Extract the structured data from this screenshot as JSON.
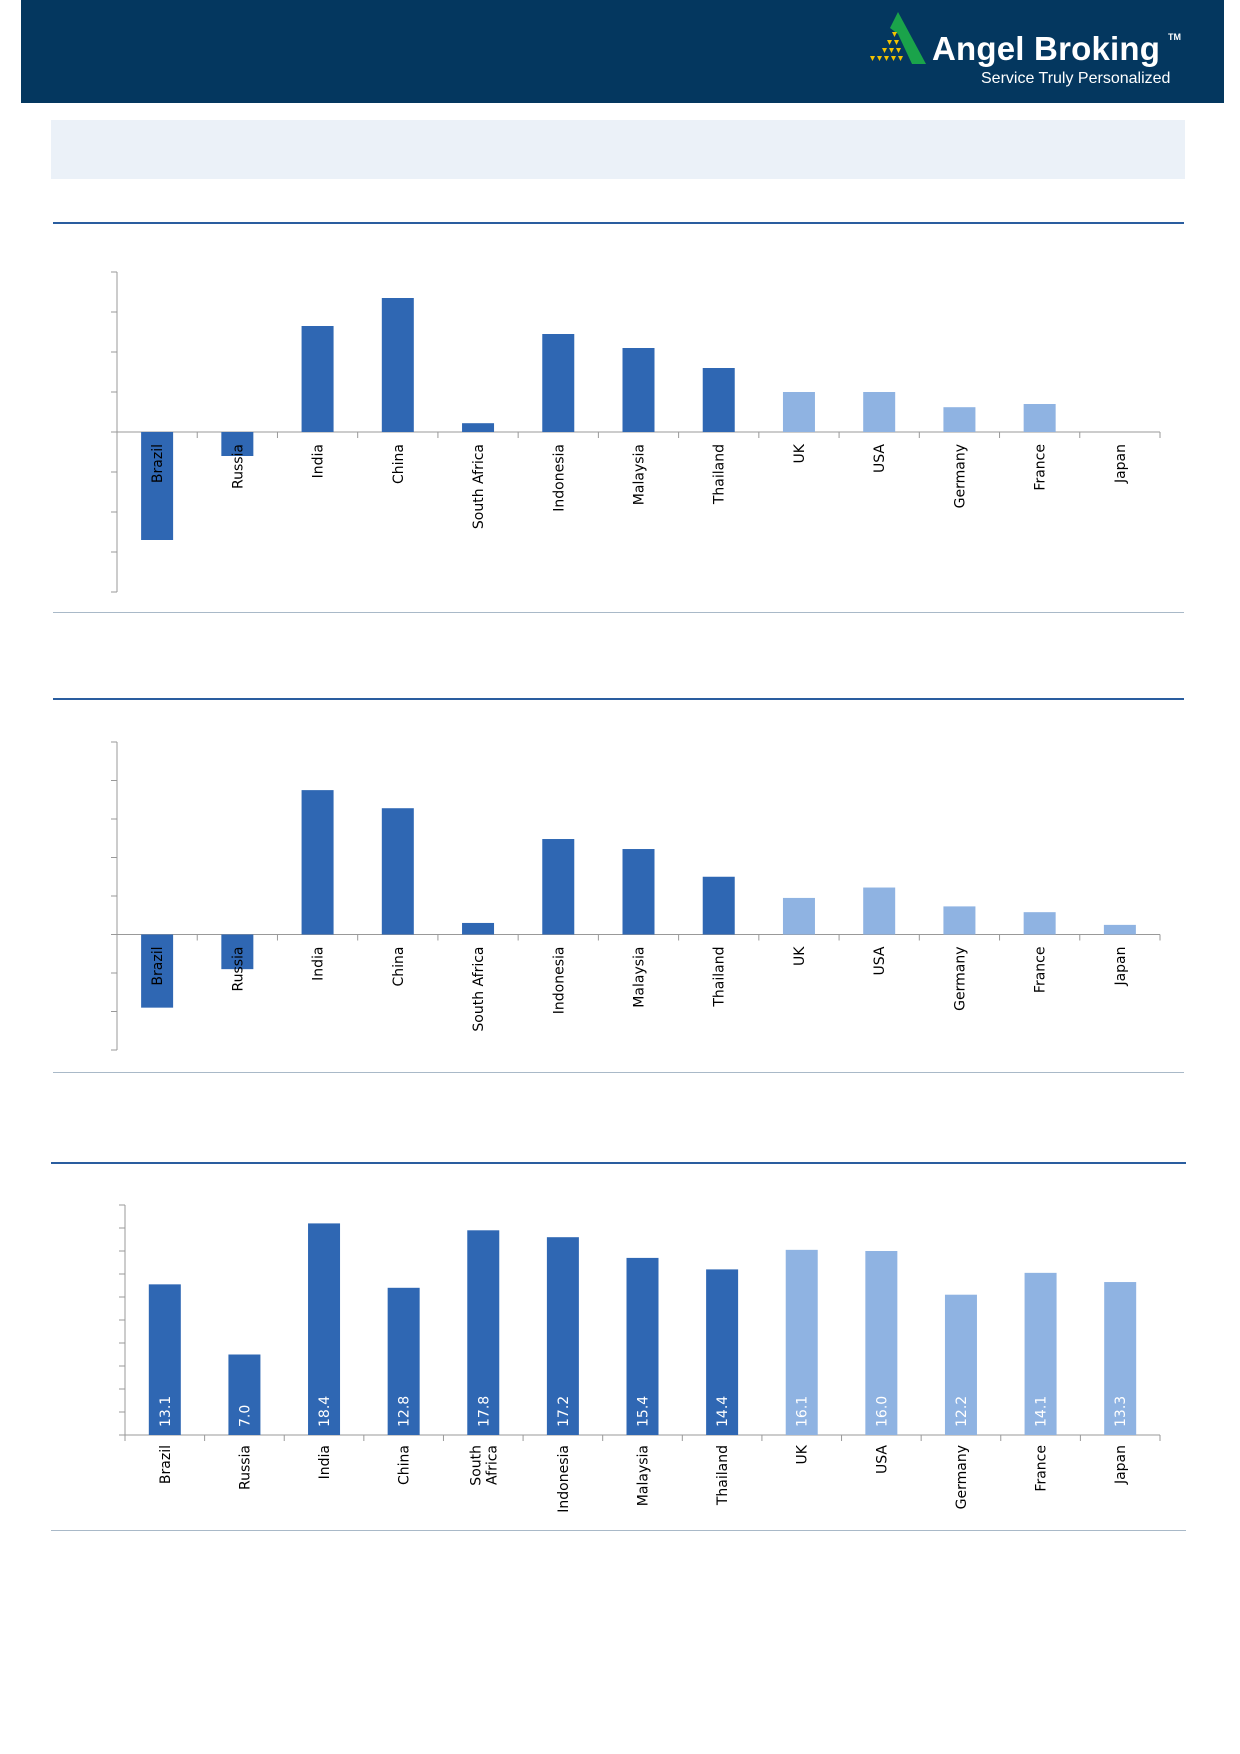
{
  "brand": {
    "name": "Angel Broking",
    "trademark": "TM",
    "tagline": "Service Truly Personalized"
  },
  "colors": {
    "header": "#04375f",
    "band": "#ebf1f8",
    "emerging_bar": "#2f67b3",
    "developed_bar": "#8fb3e2"
  },
  "chart_data": [
    {
      "type": "bar",
      "categories": [
        "Brazil",
        "Russia",
        "India",
        "China",
        "South Africa",
        "Indonesia",
        "Malaysia",
        "Thailand",
        "UK",
        "USA",
        "Germany",
        "France",
        "Japan"
      ],
      "values": [
        -2.7,
        -0.6,
        2.65,
        3.35,
        0.22,
        2.45,
        2.1,
        1.6,
        1.0,
        1.0,
        0.62,
        0.7,
        0.0
      ],
      "ylim": [
        -4,
        4
      ],
      "series_groups": [
        "emerging",
        "emerging",
        "emerging",
        "emerging",
        "emerging",
        "emerging",
        "emerging",
        "emerging",
        "developed",
        "developed",
        "developed",
        "developed",
        "developed"
      ]
    },
    {
      "type": "bar",
      "categories": [
        "Brazil",
        "Russia",
        "India",
        "China",
        "South Africa",
        "Indonesia",
        "Malaysia",
        "Thailand",
        "UK",
        "USA",
        "Germany",
        "France",
        "Japan"
      ],
      "values": [
        -1.9,
        -0.9,
        3.75,
        3.28,
        0.3,
        2.48,
        2.22,
        1.5,
        0.95,
        1.22,
        0.73,
        0.58,
        0.25
      ],
      "ylim": [
        -3,
        5
      ],
      "series_groups": [
        "emerging",
        "emerging",
        "emerging",
        "emerging",
        "emerging",
        "emerging",
        "emerging",
        "emerging",
        "developed",
        "developed",
        "developed",
        "developed",
        "developed"
      ]
    },
    {
      "type": "bar",
      "categories": [
        "Brazil",
        "Russia",
        "India",
        "China",
        "South Africa",
        "Indonesia",
        "Malaysia",
        "Thailand",
        "UK",
        "USA",
        "Germany",
        "France",
        "Japan"
      ],
      "category_lines": [
        [
          "Brazil"
        ],
        [
          "Russia"
        ],
        [
          "India"
        ],
        [
          "China"
        ],
        [
          "South",
          "Africa"
        ],
        [
          "Indonesia"
        ],
        [
          "Malaysia"
        ],
        [
          "Thailand"
        ],
        [
          "UK"
        ],
        [
          "USA"
        ],
        [
          "Germany"
        ],
        [
          "France"
        ],
        [
          "Japan"
        ]
      ],
      "values": [
        13.1,
        7.0,
        18.4,
        12.8,
        17.8,
        17.2,
        15.4,
        14.4,
        16.1,
        16.0,
        12.2,
        14.1,
        13.3
      ],
      "data_labels": [
        "13.1",
        "7.0",
        "18.4",
        "12.8",
        "17.8",
        "17.2",
        "15.4",
        "14.4",
        "16.1",
        "16.0",
        "12.2",
        "14.1",
        "13.3"
      ],
      "ylim": [
        0,
        20
      ],
      "series_groups": [
        "emerging",
        "emerging",
        "emerging",
        "emerging",
        "emerging",
        "emerging",
        "emerging",
        "emerging",
        "developed",
        "developed",
        "developed",
        "developed",
        "developed"
      ]
    }
  ]
}
